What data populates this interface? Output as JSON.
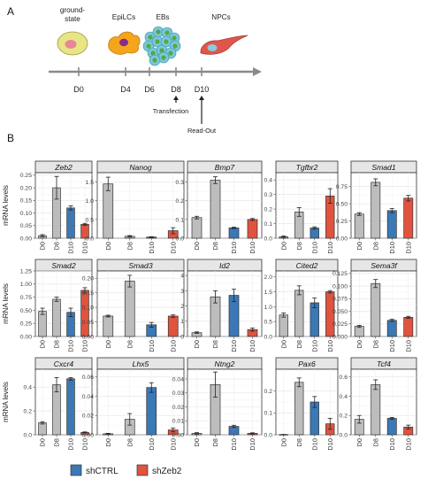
{
  "panels": {
    "a": "A",
    "b": "B"
  },
  "timeline": {
    "stages": [
      {
        "label_lines": [
          "ground-",
          "state"
        ],
        "icon": "ground-state-cell-icon"
      },
      {
        "label_lines": [
          "EpiLCs"
        ],
        "icon": "epilc-cell-icon"
      },
      {
        "label_lines": [
          "EBs"
        ],
        "icon": "embryoid-body-icon"
      },
      {
        "label_lines": [
          "NPCs"
        ],
        "icon": "npc-cell-icon"
      }
    ],
    "days": [
      "D0",
      "D4",
      "D6",
      "D8",
      "D10"
    ],
    "notes": [
      {
        "text": "Transfection",
        "day": "D8"
      },
      {
        "text": "Read-Out",
        "day": "D10"
      }
    ],
    "colors": {
      "ground_state_cell": "#e7e585",
      "ground_state_nucleus": "#e98596",
      "epilc_cell": "#f4a51c",
      "epilc_nucleus": "#8a2b84",
      "eb_cell": "#78c8dd",
      "eb_nucleus": "#5aa83c",
      "npc_cell": "#e0564a",
      "npc_nucleus": "#8fc7dc",
      "arrow": "#8a8a8a"
    }
  },
  "ylabel": "mRNA levels",
  "chart_data": {
    "type": "bar",
    "categories": [
      "D0",
      "D8",
      "D10",
      "D10"
    ],
    "bar_colors": [
      "#bdbdbd",
      "#bdbdbd",
      "#3b78b6",
      "#e0533f"
    ],
    "grid": true,
    "legend": {
      "position": "bottom-left",
      "entries": [
        {
          "name": "shCTRL",
          "color": "#3b78b6"
        },
        {
          "name": "shZeb2",
          "color": "#e0533f"
        }
      ]
    },
    "facets": [
      {
        "gene": "Zeb2",
        "values": [
          0.01,
          0.2,
          0.12,
          0.055
        ],
        "errors": [
          0.004,
          0.045,
          0.008,
          0.004
        ],
        "ylim": [
          0,
          0.26
        ],
        "ticks": [
          "0.00",
          "0.05",
          "0.10",
          "0.15",
          "0.20",
          "0.25"
        ],
        "tick_values": [
          0,
          0.05,
          0.1,
          0.15,
          0.2,
          0.25
        ]
      },
      {
        "gene": "Nanog",
        "values": [
          1.45,
          0.05,
          0.03,
          0.2
        ],
        "errors": [
          0.18,
          0.02,
          0.01,
          0.08
        ],
        "ylim": [
          0,
          1.75
        ],
        "ticks": [
          "0.0",
          "0.5",
          "1.0",
          "1.5"
        ],
        "tick_values": [
          0,
          0.5,
          1.0,
          1.5
        ]
      },
      {
        "gene": "Bmp7",
        "values": [
          0.11,
          0.31,
          0.055,
          0.1
        ],
        "errors": [
          0.007,
          0.018,
          0.004,
          0.005
        ],
        "ylim": [
          0,
          0.35
        ],
        "ticks": [
          "0.0",
          "0.1",
          "0.2",
          "0.3"
        ],
        "tick_values": [
          0,
          0.1,
          0.2,
          0.3
        ]
      },
      {
        "gene": "Tgfbr2",
        "values": [
          0.01,
          0.18,
          0.07,
          0.29
        ],
        "errors": [
          0.005,
          0.03,
          0.008,
          0.05
        ],
        "ylim": [
          0,
          0.45
        ],
        "ticks": [
          "0.0",
          "0.1",
          "0.2",
          "0.3",
          "0.4"
        ],
        "tick_values": [
          0,
          0.1,
          0.2,
          0.3,
          0.4
        ]
      },
      {
        "gene": "Smad1",
        "values": [
          0.35,
          0.81,
          0.4,
          0.58
        ],
        "errors": [
          0.02,
          0.05,
          0.03,
          0.04
        ],
        "ylim": [
          0,
          0.95
        ],
        "ticks": [
          "0.00",
          "0.25",
          "0.50",
          "0.75"
        ],
        "tick_values": [
          0,
          0.25,
          0.5,
          0.75
        ]
      },
      {
        "gene": "Smad2",
        "values": [
          0.48,
          0.71,
          0.46,
          0.88
        ],
        "errors": [
          0.06,
          0.04,
          0.08,
          0.05
        ],
        "ylim": [
          0,
          1.25
        ],
        "ticks": [
          "0.00",
          "0.25",
          "0.50",
          "0.75",
          "1.00",
          "1.25"
        ],
        "tick_values": [
          0,
          0.25,
          0.5,
          0.75,
          1.0,
          1.25
        ]
      },
      {
        "gene": "Smad3",
        "values": [
          0.07,
          0.19,
          0.04,
          0.07
        ],
        "errors": [
          0.003,
          0.02,
          0.008,
          0.004
        ],
        "ylim": [
          0,
          0.225
        ],
        "ticks": [
          "0.00",
          "0.05",
          "0.10",
          "0.15",
          "0.20"
        ],
        "tick_values": [
          0,
          0.05,
          0.1,
          0.15,
          0.2
        ]
      },
      {
        "gene": "Id2",
        "values": [
          0.25,
          2.6,
          2.7,
          0.45
        ],
        "errors": [
          0.05,
          0.4,
          0.4,
          0.1
        ],
        "ylim": [
          0,
          4.3
        ],
        "ticks": [
          "0",
          "1",
          "2",
          "3",
          "4"
        ],
        "tick_values": [
          0,
          1,
          2,
          3,
          4
        ]
      },
      {
        "gene": "Cited2",
        "values": [
          0.72,
          1.55,
          1.13,
          1.5
        ],
        "errors": [
          0.07,
          0.15,
          0.16,
          0.04
        ],
        "ylim": [
          0,
          2.2
        ],
        "ticks": [
          "0.0",
          "0.5",
          "1.0",
          "1.5",
          "2.0"
        ],
        "tick_values": [
          0,
          0.5,
          1.0,
          1.5,
          2.0
        ]
      },
      {
        "gene": "Sema3f",
        "values": [
          0.02,
          0.105,
          0.032,
          0.038
        ],
        "errors": [
          0.002,
          0.008,
          0.002,
          0.002
        ],
        "ylim": [
          0,
          0.13
        ],
        "ticks": [
          "0.000",
          "0.025",
          "0.050",
          "0.075",
          "0.100",
          "0.125"
        ],
        "tick_values": [
          0,
          0.025,
          0.05,
          0.075,
          0.1,
          0.125
        ]
      },
      {
        "gene": "Cxcr4",
        "values": [
          0.1,
          0.42,
          0.47,
          0.02
        ],
        "errors": [
          0.01,
          0.06,
          0.01,
          0.004
        ],
        "ylim": [
          0,
          0.55
        ],
        "ticks": [
          "0.0",
          "0.2",
          "0.4"
        ],
        "tick_values": [
          0,
          0.2,
          0.4
        ]
      },
      {
        "gene": "Lhx5",
        "values": [
          0.001,
          0.016,
          0.049,
          0.005
        ],
        "errors": [
          0.0005,
          0.006,
          0.005,
          0.002
        ],
        "ylim": [
          0,
          0.068
        ],
        "ticks": [
          "0.00",
          "0.02",
          "0.04",
          "0.06"
        ],
        "tick_values": [
          0,
          0.02,
          0.04,
          0.06
        ]
      },
      {
        "gene": "Ntng2",
        "values": [
          0.001,
          0.036,
          0.006,
          0.001
        ],
        "errors": [
          0.0005,
          0.009,
          0.0008,
          0.0004
        ],
        "ylim": [
          0,
          0.047
        ],
        "ticks": [
          "0.00",
          "0.01",
          "0.02",
          "0.03",
          "0.04"
        ],
        "tick_values": [
          0,
          0.01,
          0.02,
          0.03,
          0.04
        ]
      },
      {
        "gene": "Pax6",
        "values": [
          0.001,
          0.24,
          0.15,
          0.05
        ],
        "errors": [
          0.0005,
          0.02,
          0.025,
          0.025
        ],
        "ylim": [
          0,
          0.3
        ],
        "ticks": [
          "0.0",
          "0.1",
          "0.2"
        ],
        "tick_values": [
          0,
          0.1,
          0.2
        ]
      },
      {
        "gene": "Tcf4",
        "values": [
          0.16,
          0.52,
          0.17,
          0.08
        ],
        "errors": [
          0.04,
          0.05,
          0.01,
          0.02
        ],
        "ylim": [
          0,
          0.68
        ],
        "ticks": [
          "0.0",
          "0.2",
          "0.4",
          "0.6"
        ],
        "tick_values": [
          0,
          0.2,
          0.4,
          0.6
        ]
      }
    ]
  }
}
